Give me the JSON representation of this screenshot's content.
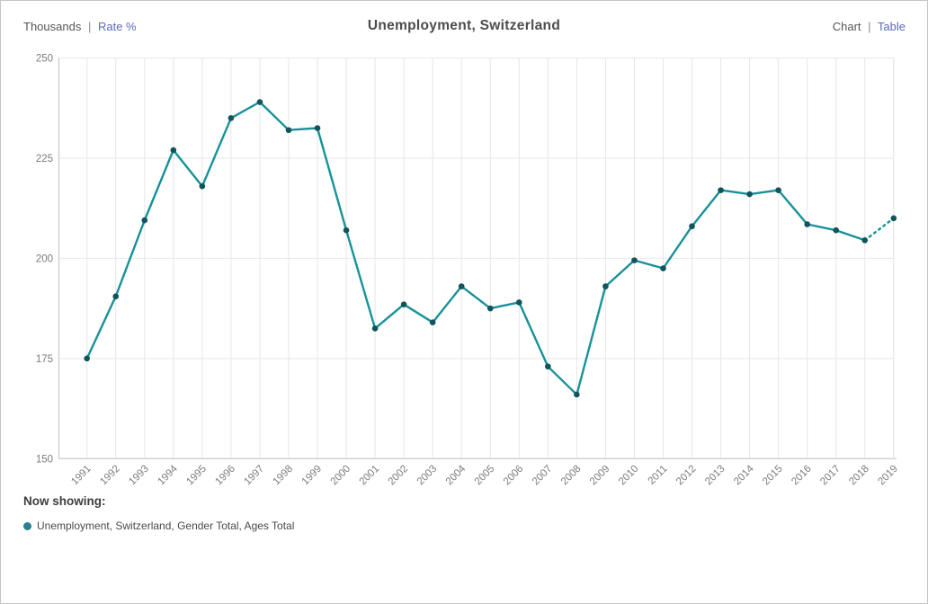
{
  "header": {
    "units": {
      "active": "Thousands",
      "separator": "|",
      "link": "Rate %"
    },
    "title": "Unemployment, Switzerland",
    "view": {
      "active": "Chart",
      "separator": "|",
      "link": "Table"
    }
  },
  "chart_data": {
    "type": "line",
    "title": "Unemployment, Switzerland",
    "unit": "Thousands",
    "x": [
      1991,
      1992,
      1993,
      1994,
      1995,
      1996,
      1997,
      1998,
      1999,
      2000,
      2001,
      2002,
      2003,
      2004,
      2005,
      2006,
      2007,
      2008,
      2009,
      2010,
      2011,
      2012,
      2013,
      2014,
      2015,
      2016,
      2017,
      2018,
      2019
    ],
    "series": [
      {
        "name": "Unemployment, Switzerland, Gender Total, Ages Total",
        "values": [
          175,
          190.5,
          209.5,
          227,
          218,
          235,
          239,
          232,
          232.5,
          207,
          182.5,
          188.5,
          184,
          193,
          187.5,
          189,
          173,
          166,
          193,
          199.5,
          197.5,
          208,
          217,
          216,
          217,
          208.5,
          207,
          204.5,
          210
        ],
        "color": "#179298",
        "marker_color": "#11545c",
        "last_segment_dashed": true
      }
    ],
    "ylim": [
      150,
      250
    ],
    "yticks": [
      150,
      175,
      200,
      225,
      250
    ],
    "grid": true,
    "legend_position": "bottom"
  },
  "legend": {
    "title": "Now showing:",
    "items": [
      {
        "label": "Unemployment, Switzerland, Gender Total, Ages Total",
        "color": "#2c7f8c"
      }
    ]
  },
  "colors": {
    "grid": "#e7e7e7",
    "axis": "#c9c9c9",
    "tick": "#7b7b7b",
    "link": "#5b6abf",
    "title": "#4c4c4c"
  }
}
